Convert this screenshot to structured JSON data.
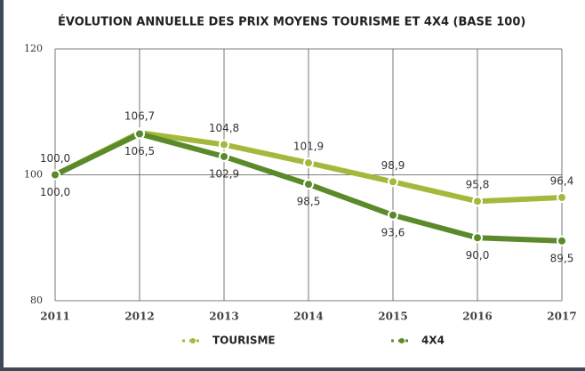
{
  "chart_data": {
    "type": "line",
    "title": "ÉVOLUTION ANNUELLE DES PRIX MOYENS TOURISME ET 4X4 (BASE 100)",
    "x": [
      2011,
      2012,
      2013,
      2014,
      2015,
      2016,
      2017
    ],
    "xlim": [
      2011,
      2017
    ],
    "xticks": [
      2011,
      2012,
      2013,
      2014,
      2015,
      2016,
      2017
    ],
    "ylim": [
      80,
      120
    ],
    "yticks": [
      80,
      100,
      120
    ],
    "grid": true,
    "legend": "bottom",
    "series": [
      {
        "name": "TOURISME",
        "color": "#a4b93c",
        "label_side": "above",
        "values": [
          100,
          106.7,
          104.8,
          101.9,
          98.9,
          95.8,
          96.4
        ],
        "value_labels": [
          "100,0",
          "106,7",
          "104,8",
          "101,9",
          "98,9",
          "95,8",
          "96,4"
        ]
      },
      {
        "name": "4X4",
        "color": "#5b8a2b",
        "label_side": "below",
        "values": [
          100,
          106.5,
          102.9,
          98.5,
          93.6,
          90.0,
          89.5
        ],
        "value_labels": [
          "100,0",
          "106,5",
          "102,9",
          "98,5",
          "93,6",
          "90,0",
          "89,5"
        ]
      }
    ]
  }
}
